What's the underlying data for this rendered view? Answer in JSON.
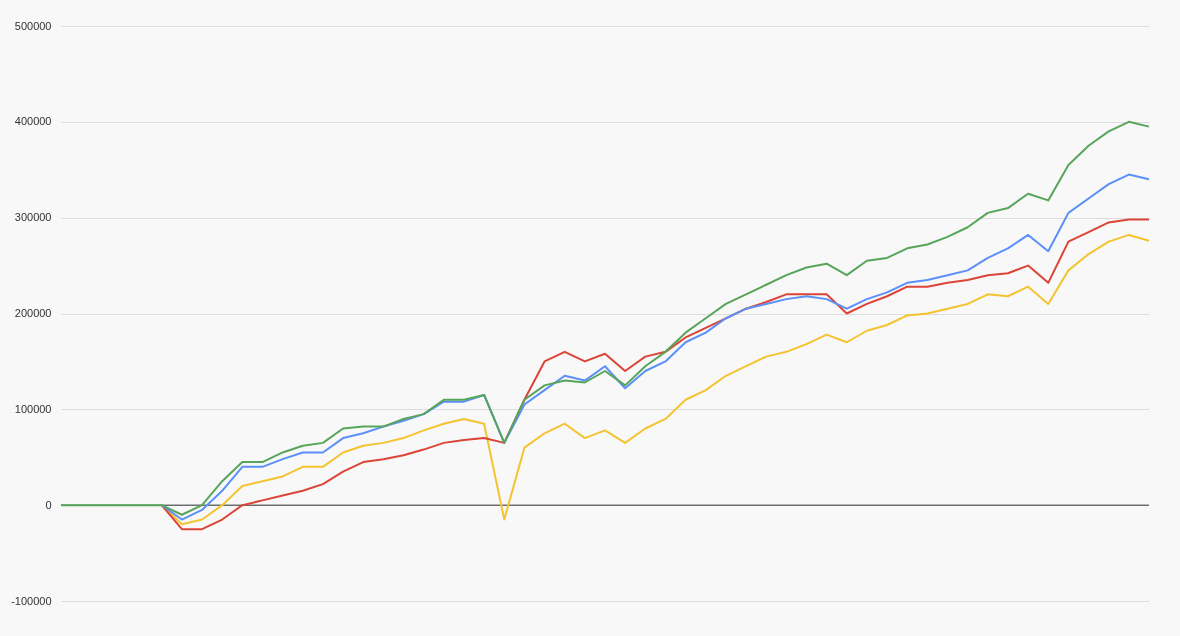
{
  "chart_data": {
    "type": "line",
    "categories": [
      null,
      null,
      null,
      null,
      null,
      null,
      null,
      null,
      null,
      null,
      null,
      null,
      null,
      null,
      null,
      null,
      null,
      null,
      null,
      null,
      null,
      null,
      null,
      null,
      null,
      null,
      null,
      null,
      null,
      null,
      null,
      null,
      null,
      null,
      null,
      null,
      null,
      null,
      null,
      null,
      null,
      null,
      null,
      null,
      null,
      null,
      null,
      null,
      null,
      null,
      null,
      null,
      null,
      null,
      null
    ],
    "series": [
      {
        "color": "#f4c430",
        "values": [
          null,
          null,
          null,
          null,
          null,
          0,
          -20000,
          -15000,
          0,
          20000,
          25000,
          30000,
          40000,
          40000,
          55000,
          62000,
          65000,
          70000,
          78000,
          85000,
          90000,
          85000,
          -15000,
          60000,
          75000,
          85000,
          70000,
          78000,
          65000,
          80000,
          90000,
          110000,
          120000,
          135000,
          145000,
          155000,
          160000,
          168000,
          178000,
          170000,
          182000,
          188000,
          198000,
          200000,
          205000,
          210000,
          220000,
          218000,
          228000,
          210000,
          245000,
          262000,
          275000,
          282000,
          276000
        ]
      },
      {
        "color": "#db4437",
        "values": [
          null,
          null,
          null,
          null,
          null,
          0,
          -25000,
          -25000,
          -15000,
          0,
          5000,
          10000,
          15000,
          22000,
          35000,
          45000,
          48000,
          52000,
          58000,
          65000,
          68000,
          70000,
          65000,
          110000,
          150000,
          160000,
          150000,
          158000,
          140000,
          155000,
          160000,
          175000,
          185000,
          195000,
          205000,
          212000,
          220000,
          220000,
          220000,
          200000,
          210000,
          218000,
          228000,
          228000,
          232000,
          235000,
          240000,
          242000,
          250000,
          232000,
          275000,
          285000,
          295000,
          298000,
          298000
        ]
      },
      {
        "color": "#5b8ff9",
        "values": [
          null,
          null,
          null,
          null,
          null,
          0,
          -15000,
          -5000,
          15000,
          40000,
          40000,
          48000,
          55000,
          55000,
          70000,
          75000,
          82000,
          88000,
          95000,
          108000,
          108000,
          115000,
          65000,
          105000,
          120000,
          135000,
          130000,
          145000,
          122000,
          140000,
          150000,
          170000,
          180000,
          195000,
          205000,
          210000,
          215000,
          218000,
          215000,
          205000,
          215000,
          222000,
          232000,
          235000,
          240000,
          245000,
          258000,
          268000,
          282000,
          265000,
          305000,
          320000,
          335000,
          345000,
          340000
        ]
      },
      {
        "color": "#57a55a",
        "values": [
          0,
          0,
          0,
          0,
          0,
          0,
          -10000,
          0,
          25000,
          45000,
          45000,
          55000,
          62000,
          65000,
          80000,
          82000,
          82000,
          90000,
          95000,
          110000,
          110000,
          115000,
          65000,
          110000,
          125000,
          130000,
          128000,
          140000,
          125000,
          145000,
          160000,
          180000,
          195000,
          210000,
          220000,
          230000,
          240000,
          248000,
          252000,
          240000,
          255000,
          258000,
          268000,
          272000,
          280000,
          290000,
          305000,
          310000,
          325000,
          318000,
          355000,
          375000,
          390000,
          400000,
          395000
        ]
      }
    ],
    "ylim": [
      -100000,
      500000
    ],
    "yticks": [
      -100000,
      0,
      100000,
      200000,
      300000,
      400000,
      500000
    ],
    "grid": "y",
    "legend": false,
    "tick_labels": "y",
    "line_style": "solid",
    "marker": "none",
    "ref_lines": [
      {
        "axis": "y",
        "value": 0,
        "color": "#333333"
      }
    ]
  }
}
